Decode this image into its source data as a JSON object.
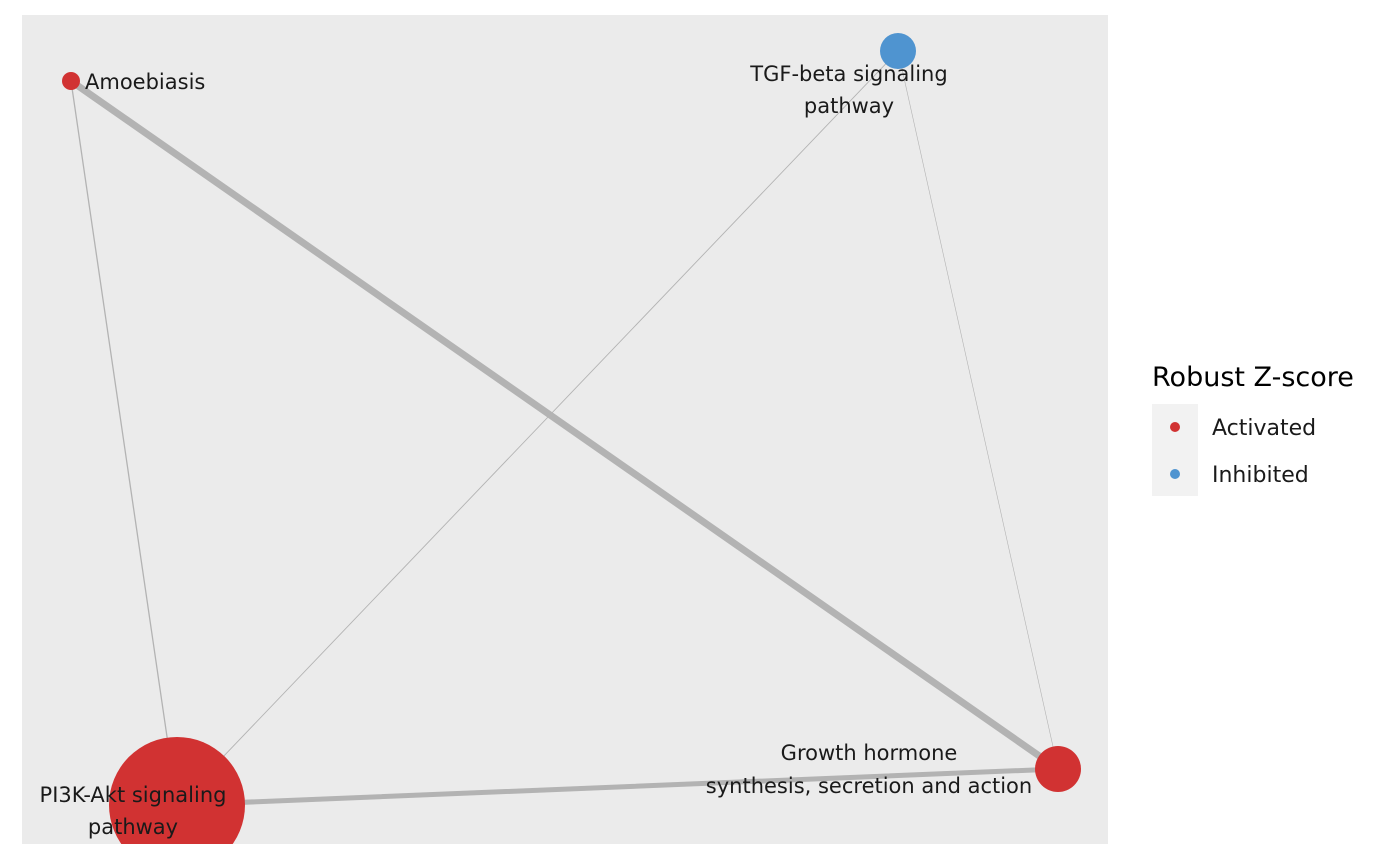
{
  "colors": {
    "panel_background": "#ebebeb",
    "edge": "#b3b3b3",
    "activated": "#d13232",
    "inhibited": "#4f94d0",
    "legend_key_background": "#f2f2f2"
  },
  "nodes": [
    {
      "id": "amoebiasis",
      "label_lines": [
        "Amoebiasis"
      ],
      "status": "Activated"
    },
    {
      "id": "tgf-beta",
      "label_lines": [
        "TGF-beta signaling",
        "pathway"
      ],
      "status": "Inhibited"
    },
    {
      "id": "pi3k-akt",
      "label_lines": [
        "PI3K-Akt signaling",
        "pathway"
      ],
      "status": "Activated"
    },
    {
      "id": "growth-hormone",
      "label_lines": [
        "Growth hormone",
        "synthesis, secretion and action"
      ],
      "status": "Activated"
    }
  ],
  "edges": [
    {
      "source": "amoebiasis",
      "target": "growth-hormone"
    },
    {
      "source": "amoebiasis",
      "target": "pi3k-akt"
    },
    {
      "source": "tgf-beta",
      "target": "pi3k-akt"
    },
    {
      "source": "tgf-beta",
      "target": "growth-hormone"
    },
    {
      "source": "pi3k-akt",
      "target": "growth-hormone"
    }
  ],
  "legend": {
    "title": "Robust Z-score",
    "items": [
      {
        "label": "Activated",
        "color_key": "activated"
      },
      {
        "label": "Inhibited",
        "color_key": "inhibited"
      }
    ]
  }
}
